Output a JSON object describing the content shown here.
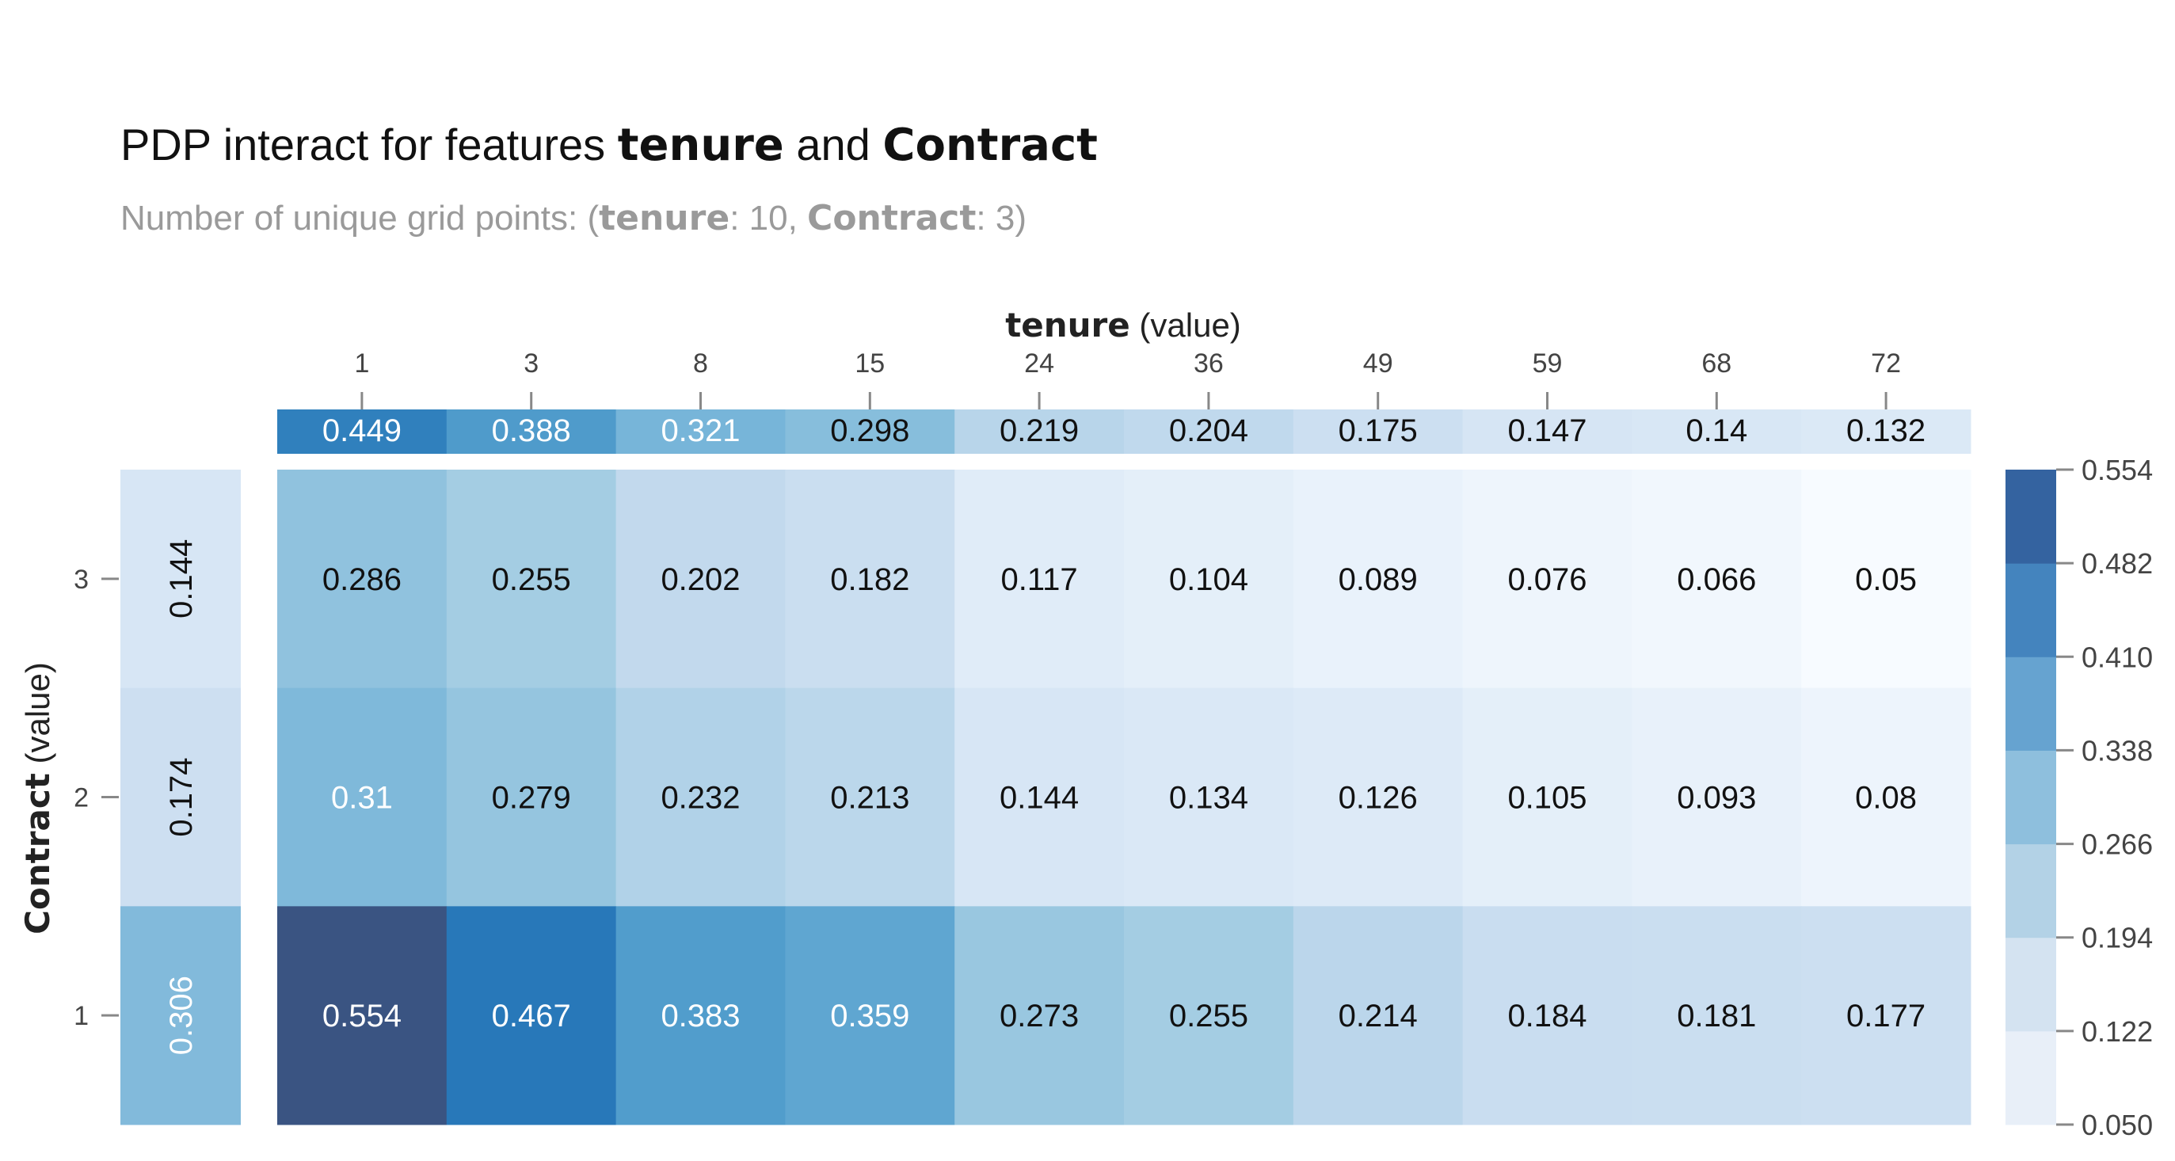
{
  "header": {
    "title_prefix": "PDP interact for features ",
    "title_feature_x": "tenure",
    "title_joiner": " and ",
    "title_feature_y": "Contract",
    "subtitle_prefix": "Number of unique grid points: (",
    "subtitle_x_name": "tenure",
    "subtitle_x_count": ": 10, ",
    "subtitle_y_name": "Contract",
    "subtitle_y_count": ": 3)"
  },
  "chart_data": {
    "type": "heatmap",
    "xaxis": {
      "name": "tenure",
      "suffix": " (value)",
      "ticks": [
        "1",
        "3",
        "8",
        "15",
        "24",
        "36",
        "49",
        "59",
        "68",
        "72"
      ]
    },
    "yaxis": {
      "name": "Contract",
      "suffix": " (value)",
      "ticks": [
        "3",
        "2",
        "1"
      ]
    },
    "x_marginal": [
      0.449,
      0.388,
      0.321,
      0.298,
      0.219,
      0.204,
      0.175,
      0.147,
      0.14,
      0.132
    ],
    "y_marginal": [
      0.144,
      0.174,
      0.306
    ],
    "matrix": [
      [
        0.286,
        0.255,
        0.202,
        0.182,
        0.117,
        0.104,
        0.089,
        0.076,
        0.066,
        0.05
      ],
      [
        0.31,
        0.279,
        0.232,
        0.213,
        0.144,
        0.134,
        0.126,
        0.105,
        0.093,
        0.08
      ],
      [
        0.554,
        0.467,
        0.383,
        0.359,
        0.273,
        0.255,
        0.214,
        0.184,
        0.181,
        0.177
      ]
    ],
    "colorbar": {
      "ticks": [
        "0.554",
        "0.482",
        "0.410",
        "0.338",
        "0.266",
        "0.194",
        "0.122",
        "0.050"
      ],
      "range": [
        0.05,
        0.554
      ],
      "colors": [
        "#e8eff8",
        "#d4e3f1",
        "#b3d2e6",
        "#8ebfdd",
        "#66a3d0",
        "#4484be",
        "#3463a0"
      ]
    }
  }
}
